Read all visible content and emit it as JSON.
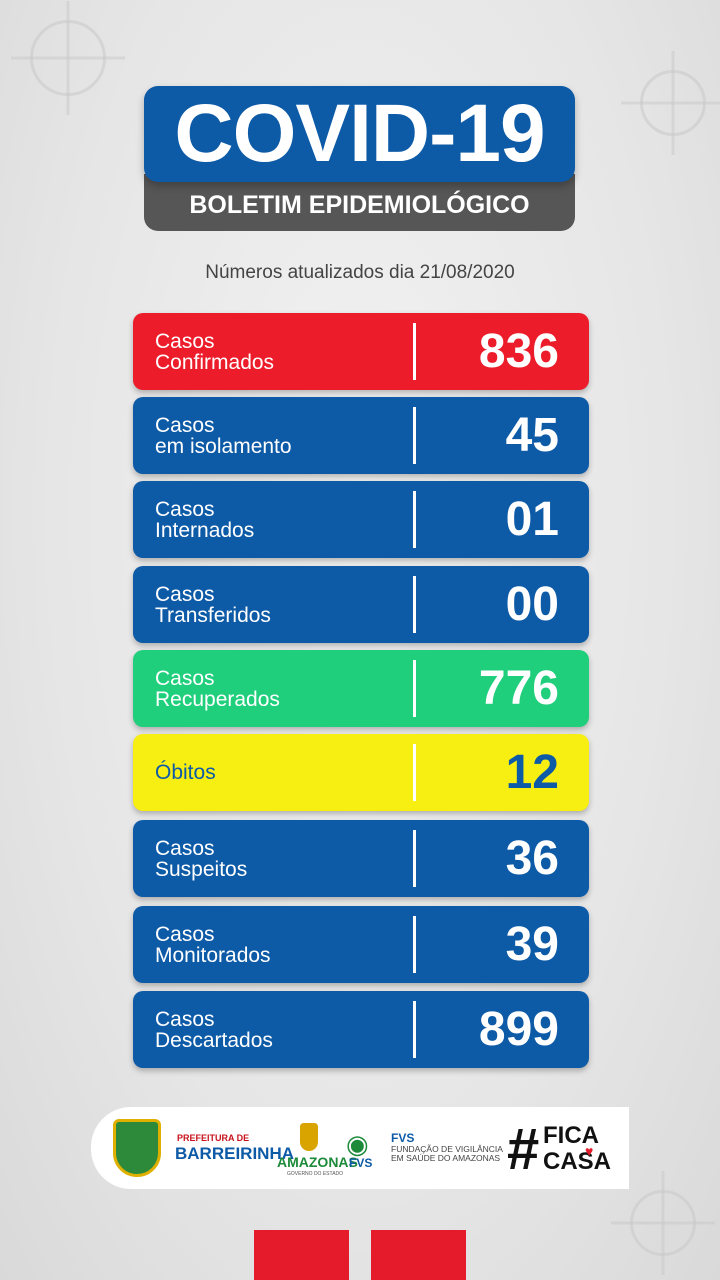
{
  "header": {
    "title": "COVID-19",
    "subtitle": "BOLETIM EPIDEMIOLÓGICO"
  },
  "updated_text": "Números atualizados dia 21/08/2020",
  "stats": [
    {
      "label": "Casos\nConfirmados",
      "value": "836",
      "color": "#ec1c2a"
    },
    {
      "label": "Casos\nem isolamento",
      "value": "45",
      "color": "#0d5aa7"
    },
    {
      "label": "Casos\nInternados",
      "value": "01",
      "color": "#0d5aa7"
    },
    {
      "label": "Casos\nTransferidos",
      "value": "00",
      "color": "#0d5aa7"
    },
    {
      "label": "Casos\nRecuperados",
      "value": "776",
      "color": "#1fcf7c"
    },
    {
      "label": "Óbitos",
      "value": "12",
      "color": "#f7ef11"
    },
    {
      "label": "Casos\nSuspeitos",
      "value": "36",
      "color": "#0d5aa7"
    },
    {
      "label": "Casos\nMonitorados",
      "value": "39",
      "color": "#0d5aa7"
    },
    {
      "label": "Casos\nDescartados",
      "value": "899",
      "color": "#0d5aa7"
    }
  ],
  "footer": {
    "prefeitura_small": "PREFEITURA DE",
    "prefeitura_name": "BARREIRINHA",
    "amazonas": "AMAZONAS",
    "amazonas_sub": "GOVERNO DO ESTADO",
    "fvs_side": "FVS",
    "fvs_title": "FVS",
    "fvs_desc": "FUNDAÇÃO DE VIGILÂNCIA EM SAÚDE DO AMAZONAS",
    "hashtag_symbol": "#",
    "hashtag_line1": "FICA",
    "hashtag_line2": "CASA"
  }
}
